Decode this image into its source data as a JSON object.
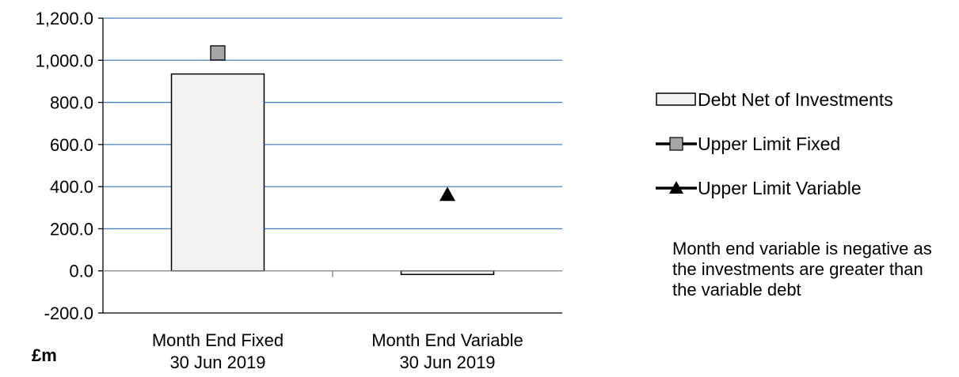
{
  "unit_label": "£m",
  "note": "Month end variable is negative as the investments are greater than the  variable debt",
  "chart_data": {
    "type": "bar",
    "title": "",
    "xlabel": "",
    "ylabel": "£m",
    "ylim": [
      -200,
      1200
    ],
    "yticks": [
      -200,
      0,
      200,
      400,
      600,
      800,
      1000,
      1200
    ],
    "ytick_labels": [
      "-200.0",
      "0.0",
      "200.0",
      "400.0",
      "600.0",
      "800.0",
      "1,000.0",
      "1,200.0"
    ],
    "grid": true,
    "legend_position": "right",
    "categories": [
      {
        "line1": "Month End Fixed",
        "line2": "30 Jun 2019"
      },
      {
        "line1": "Month End Variable",
        "line2": "30 Jun 2019"
      }
    ],
    "series": [
      {
        "name": "Debt Net of Investments",
        "kind": "bar",
        "values": [
          935,
          -17
        ],
        "color": "#f2f2f2",
        "marker": "none"
      },
      {
        "name": "Upper Limit Fixed",
        "kind": "marker",
        "values": [
          1035,
          null
        ],
        "color": "#a6a6a6",
        "marker": "square"
      },
      {
        "name": "Upper Limit Variable",
        "kind": "marker",
        "values": [
          null,
          362
        ],
        "color": "#000000",
        "marker": "triangle"
      }
    ]
  }
}
